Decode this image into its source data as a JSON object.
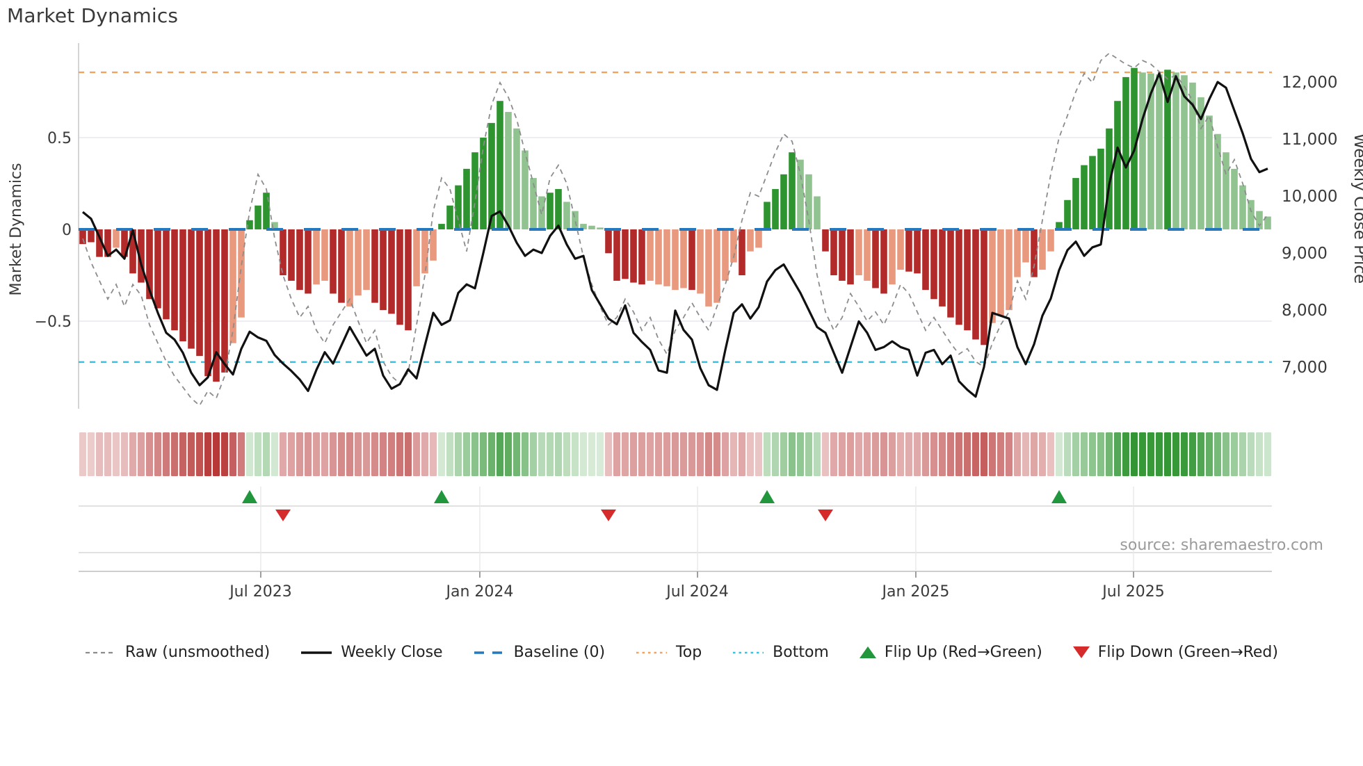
{
  "title": "Market Dynamics",
  "source": "source: sharemaestro.com",
  "left_axis": {
    "label": "Market Dynamics",
    "ticks": [
      "0.5",
      "0",
      "−0.5"
    ],
    "tick_values": [
      0.5,
      0,
      -0.5
    ]
  },
  "right_axis": {
    "label": "Weekly Close Price",
    "ticks": [
      "12,000",
      "11,000",
      "10,000",
      "9,000",
      "8,000",
      "7,000"
    ],
    "tick_values": [
      12000,
      11000,
      10000,
      9000,
      8000,
      7000
    ]
  },
  "x_axis": {
    "ticks": [
      "Jul 2023",
      "Jan 2024",
      "Jul 2024",
      "Jan 2025",
      "Jul 2025"
    ],
    "tick_weeks": [
      21.33,
      47.58,
      73.67,
      99.83,
      125.92
    ]
  },
  "colors": {
    "dark_red": "#b32a2a",
    "salmon": "#e9997e",
    "dark_green": "#2e9430",
    "light_green": "#90c390",
    "baseline": "#2478be",
    "top": "#f0a35f",
    "bottom": "#3bc0e0",
    "raw": "#8c8c8c",
    "close": "#111111",
    "flip_up": "#21963c",
    "flip_down": "#d62b2b",
    "grid": "#e9e9ee",
    "spine": "#c9c9c9",
    "text": "#3a3a3a",
    "muted": "#9a9a9a"
  },
  "legend": [
    {
      "type": "dash-gray",
      "label": "Raw (unsmoothed)"
    },
    {
      "type": "solid-black",
      "label": "Weekly Close"
    },
    {
      "type": "dash-blue",
      "label": "Baseline (0)"
    },
    {
      "type": "dot-orange",
      "label": "Top"
    },
    {
      "type": "dot-cyan",
      "label": "Bottom"
    },
    {
      "type": "tri-up",
      "label": "Flip Up (Red→Green)"
    },
    {
      "type": "tri-down",
      "label": "Flip Down (Green→Red)"
    }
  ],
  "chart_data": {
    "type": "combo",
    "description": "Weekly smoothed market-dynamics oscillator (bars, left axis -1..1), raw unsmoothed oscillator (gray dashed), weekly close price (black, right axis), with top/bottom threshold lines, baseline, regime heatmap strip and flip markers.",
    "weeks": 143,
    "baseline": 0,
    "top_threshold": 0.856,
    "bottom_threshold": -0.723,
    "left_ylim": [
      -1.02,
      1.02
    ],
    "right_ylim": [
      6480,
      12300
    ],
    "bar_color_key": {
      "R": "dark_red (falling)",
      "r": "salmon (recovering)",
      "G": "dark_green (rising)",
      "g": "light_green (fading)"
    },
    "bar_colors": "RRRRrRRRRRRRRRRRRRrrGGGgRRRRrrRRrrrRRRRRrrrGGGGGGGGgggggGGgggggRRRRRrrrrrRrrrrrRrrGGGGgggRRRRrrRRrrRRRRRRRRRRrrrrrRrrGGGGGGGGGGgggGgggggggggggg",
    "bars": [
      -0.08,
      -0.07,
      -0.15,
      -0.15,
      -0.1,
      -0.15,
      -0.24,
      -0.29,
      -0.38,
      -0.43,
      -0.49,
      -0.55,
      -0.61,
      -0.65,
      -0.69,
      -0.8,
      -0.83,
      -0.78,
      -0.62,
      -0.48,
      0.05,
      0.13,
      0.2,
      0.04,
      -0.25,
      -0.28,
      -0.33,
      -0.35,
      -0.3,
      -0.28,
      -0.35,
      -0.4,
      -0.42,
      -0.36,
      -0.33,
      -0.4,
      -0.44,
      -0.46,
      -0.52,
      -0.55,
      -0.31,
      -0.24,
      -0.17,
      0.03,
      0.13,
      0.24,
      0.33,
      0.42,
      0.5,
      0.58,
      0.7,
      0.64,
      0.55,
      0.43,
      0.28,
      0.18,
      0.2,
      0.22,
      0.15,
      0.1,
      0.03,
      0.02,
      0.01,
      -0.13,
      -0.28,
      -0.27,
      -0.29,
      -0.3,
      -0.28,
      -0.3,
      -0.31,
      -0.33,
      -0.32,
      -0.33,
      -0.35,
      -0.42,
      -0.4,
      -0.28,
      -0.18,
      -0.25,
      -0.12,
      -0.1,
      0.15,
      0.22,
      0.3,
      0.42,
      0.38,
      0.3,
      0.18,
      -0.12,
      -0.25,
      -0.28,
      -0.3,
      -0.25,
      -0.28,
      -0.32,
      -0.35,
      -0.3,
      -0.22,
      -0.23,
      -0.24,
      -0.33,
      -0.38,
      -0.42,
      -0.48,
      -0.52,
      -0.55,
      -0.6,
      -0.63,
      -0.51,
      -0.47,
      -0.44,
      -0.26,
      -0.18,
      -0.26,
      -0.22,
      -0.12,
      0.04,
      0.16,
      0.28,
      0.35,
      0.4,
      0.44,
      0.55,
      0.7,
      0.83,
      0.88,
      0.855,
      0.85,
      0.845,
      0.87,
      0.855,
      0.84,
      0.8,
      0.72,
      0.62,
      0.52,
      0.42,
      0.33,
      0.24,
      0.16,
      0.1,
      0.07
    ],
    "raw": [
      -0.05,
      -0.18,
      -0.28,
      -0.38,
      -0.3,
      -0.42,
      -0.3,
      -0.36,
      -0.52,
      -0.62,
      -0.72,
      -0.8,
      -0.86,
      -0.92,
      -0.96,
      -0.88,
      -0.92,
      -0.8,
      -0.55,
      -0.2,
      0.1,
      0.3,
      0.22,
      -0.05,
      -0.25,
      -0.38,
      -0.48,
      -0.42,
      -0.55,
      -0.62,
      -0.52,
      -0.45,
      -0.38,
      -0.5,
      -0.62,
      -0.55,
      -0.72,
      -0.8,
      -0.84,
      -0.78,
      -0.52,
      -0.25,
      0.1,
      0.28,
      0.22,
      0.05,
      -0.12,
      0.15,
      0.45,
      0.68,
      0.8,
      0.72,
      0.6,
      0.42,
      0.25,
      0.08,
      0.28,
      0.35,
      0.25,
      0.05,
      -0.15,
      -0.3,
      -0.42,
      -0.52,
      -0.48,
      -0.38,
      -0.45,
      -0.55,
      -0.48,
      -0.6,
      -0.68,
      -0.55,
      -0.48,
      -0.4,
      -0.48,
      -0.55,
      -0.42,
      -0.3,
      -0.15,
      0.05,
      0.2,
      0.18,
      0.3,
      0.42,
      0.52,
      0.48,
      0.3,
      0.05,
      -0.25,
      -0.45,
      -0.55,
      -0.48,
      -0.35,
      -0.42,
      -0.5,
      -0.45,
      -0.52,
      -0.42,
      -0.3,
      -0.35,
      -0.45,
      -0.55,
      -0.48,
      -0.55,
      -0.62,
      -0.68,
      -0.65,
      -0.72,
      -0.75,
      -0.62,
      -0.52,
      -0.45,
      -0.28,
      -0.38,
      -0.2,
      0.05,
      0.3,
      0.5,
      0.62,
      0.75,
      0.85,
      0.8,
      0.92,
      0.96,
      0.93,
      0.9,
      0.88,
      0.92,
      0.9,
      0.86,
      0.82,
      0.84,
      0.78,
      0.7,
      0.55,
      0.62,
      0.45,
      0.3,
      0.38,
      0.25,
      0.1,
      0.02,
      0.08
    ],
    "close": [
      9720,
      9600,
      9280,
      8950,
      9060,
      8900,
      9400,
      8800,
      8350,
      7950,
      7600,
      7480,
      7250,
      6900,
      6680,
      6820,
      7260,
      7050,
      6870,
      7320,
      7620,
      7520,
      7460,
      7210,
      7060,
      6930,
      6780,
      6580,
      6950,
      7260,
      7060,
      7380,
      7700,
      7450,
      7200,
      7320,
      6850,
      6620,
      6700,
      6960,
      6800,
      7380,
      7950,
      7740,
      7820,
      8300,
      8450,
      8380,
      9000,
      9650,
      9730,
      9480,
      9180,
      8950,
      9060,
      9000,
      9300,
      9480,
      9150,
      8900,
      8950,
      8350,
      8100,
      7850,
      7750,
      8080,
      7600,
      7440,
      7300,
      6940,
      6900,
      7990,
      7650,
      7480,
      6980,
      6680,
      6600,
      7300,
      7950,
      8100,
      7850,
      8050,
      8500,
      8700,
      8800,
      8550,
      8300,
      8000,
      7700,
      7600,
      7250,
      6900,
      7350,
      7800,
      7600,
      7300,
      7350,
      7450,
      7350,
      7300,
      6850,
      7250,
      7300,
      7050,
      7200,
      6750,
      6600,
      6480,
      7000,
      7950,
      7900,
      7850,
      7350,
      7050,
      7400,
      7900,
      8200,
      8700,
      9050,
      9200,
      8950,
      9100,
      9150,
      10200,
      10850,
      10500,
      10800,
      11350,
      11800,
      12150,
      11650,
      12100,
      11750,
      11600,
      11350,
      11700,
      12000,
      11900,
      11500,
      11100,
      10650,
      10420,
      10480
    ],
    "flips": [
      {
        "week": 20,
        "dir": "up"
      },
      {
        "week": 24,
        "dir": "down"
      },
      {
        "week": 43,
        "dir": "up"
      },
      {
        "week": 63,
        "dir": "down"
      },
      {
        "week": 82,
        "dir": "up"
      },
      {
        "week": 89,
        "dir": "down"
      },
      {
        "week": 117,
        "dir": "up"
      }
    ],
    "heatmap": "one cell per week, hue = sign of bar value, intensity = |bar value|",
    "grid": "horizontal gridlines at 0.5 and -0.5 only",
    "legend_position": "bottom center"
  }
}
